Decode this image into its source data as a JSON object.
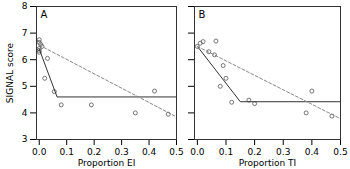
{
  "chart_data": [
    {
      "type": "scatter",
      "annotation": "A",
      "xlabel": "Proportion EI",
      "ylabel": "SIGNAL score",
      "xlim": [
        -0.01,
        0.5
      ],
      "xticks": [
        {
          "value": 0.0,
          "label": "0.0"
        },
        0.1,
        0.2,
        0.3,
        0.4,
        0.5
      ],
      "ylim": [
        3,
        8
      ],
      "yticks": [
        3,
        4,
        5,
        6,
        7,
        8
      ],
      "series": [
        {
          "type": "scatter",
          "marker": "open_circle",
          "color": "#555555",
          "x": [
            0.0,
            0.0,
            0.0,
            0.0,
            0.0,
            0.005,
            0.01,
            0.02,
            0.03,
            0.055,
            0.08,
            0.19,
            0.35,
            0.42,
            0.47
          ],
          "values": [
            6.75,
            6.65,
            6.42,
            6.35,
            6.28,
            6.58,
            6.5,
            5.3,
            6.05,
            4.8,
            4.3,
            4.3,
            4.0,
            4.82,
            3.95
          ]
        },
        {
          "type": "line",
          "line_style": "solid",
          "color": "#333333",
          "x": [
            0.0,
            0.065,
            0.065,
            0.5
          ],
          "values": [
            6.4,
            4.6,
            4.6,
            4.6
          ]
        },
        {
          "type": "line",
          "line_style": "dashed",
          "color": "#888888",
          "x": [
            0.0,
            0.5
          ],
          "values": [
            6.55,
            3.85
          ]
        }
      ]
    },
    {
      "type": "scatter",
      "annotation": "B",
      "xlabel": "Proportion TI",
      "xlim": [
        -0.01,
        0.5
      ],
      "xticks": [
        {
          "value": 0.0,
          "label": "0.0"
        },
        0.1,
        0.2,
        0.3,
        0.4,
        0.5
      ],
      "ylim": [
        3,
        8
      ],
      "yticks": [
        3,
        4,
        5,
        6,
        7,
        8
      ],
      "tick_labels": "x",
      "series": [
        {
          "type": "scatter",
          "marker": "open_circle",
          "color": "#555555",
          "x": [
            0.0,
            0.01,
            0.02,
            0.04,
            0.06,
            0.065,
            0.08,
            0.09,
            0.1,
            0.12,
            0.18,
            0.2,
            0.38,
            0.4,
            0.47
          ],
          "values": [
            6.5,
            6.62,
            6.68,
            6.3,
            6.18,
            6.7,
            5.0,
            5.78,
            5.3,
            4.4,
            4.48,
            4.35,
            4.0,
            4.82,
            3.88
          ]
        },
        {
          "type": "line",
          "line_style": "solid",
          "color": "#333333",
          "x": [
            0.0,
            0.15,
            0.15,
            0.5
          ],
          "values": [
            6.5,
            4.42,
            4.42,
            4.42
          ]
        },
        {
          "type": "line",
          "line_style": "dashed",
          "color": "#888888",
          "x": [
            0.0,
            0.5
          ],
          "values": [
            6.5,
            3.78
          ]
        }
      ]
    }
  ]
}
